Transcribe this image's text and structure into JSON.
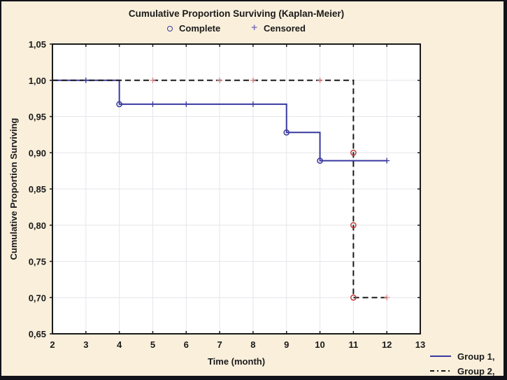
{
  "title": "Cumulative Proportion Surviving (Kaplan-Meier)",
  "top_legend": {
    "complete_label": "Complete",
    "censored_label": "Censored",
    "censored_symbol": "+"
  },
  "axes": {
    "x": {
      "label": "Time (month)"
    },
    "y": {
      "label": "Cumulative Proportion Surviving"
    }
  },
  "colors": {
    "background": "#f9efdb",
    "frame_border": "#12121a",
    "plot_bg": "#ffffff",
    "grid": "#e6e6ec",
    "axis": "#1a1a1a",
    "text": "#1a1a1a",
    "group1": "#3939a0",
    "group2": "#1a1a1a",
    "group2_marker": "#c93a3a",
    "group2_censor": "#dd8585",
    "legend_censored_plus": "#8878c0"
  },
  "chart_data": {
    "type": "line",
    "subtype": "kaplan-meier-step",
    "title": "Cumulative Proportion Surviving (Kaplan-Meier)",
    "xlabel": "Time (month)",
    "ylabel": "Cumulative Proportion Surviving",
    "xlim": [
      2,
      13
    ],
    "ylim": [
      0.65,
      1.05
    ],
    "x_ticks": [
      2,
      3,
      4,
      5,
      6,
      7,
      8,
      9,
      10,
      11,
      12,
      13
    ],
    "y_tick_values": [
      1.05,
      1.0,
      0.95,
      0.9,
      0.85,
      0.8,
      0.75,
      0.7,
      0.65
    ],
    "y_tick_labels": [
      "1,05",
      "1,00",
      "0,95",
      "0,90",
      "0,85",
      "0,80",
      "0,75",
      "0,70",
      "0,65"
    ],
    "grid": true,
    "legend_position": "bottom-right",
    "series": [
      {
        "name": "Group 1,",
        "line_style": "solid",
        "color": "#3939a0",
        "marker_color": "#3939a0",
        "censor_color": "#3939a0",
        "steps": [
          [
            2,
            1.0
          ],
          [
            4,
            1.0
          ],
          [
            4,
            0.967
          ],
          [
            9,
            0.967
          ],
          [
            9,
            0.928
          ],
          [
            10,
            0.928
          ],
          [
            10,
            0.889
          ],
          [
            12,
            0.889
          ]
        ],
        "complete_points": [
          [
            4,
            0.967
          ],
          [
            9,
            0.928
          ],
          [
            10,
            0.889
          ]
        ],
        "censored_points": [
          [
            3,
            1.0
          ],
          [
            5,
            0.967
          ],
          [
            6,
            0.967
          ],
          [
            8,
            0.967
          ],
          [
            12,
            0.889
          ]
        ]
      },
      {
        "name": "Group 2,",
        "line_style": "dashed",
        "color": "#1a1a1a",
        "marker_color": "#c93a3a",
        "censor_color": "#dd8585",
        "steps": [
          [
            2,
            1.0
          ],
          [
            11,
            1.0
          ],
          [
            11,
            0.7
          ],
          [
            12,
            0.7
          ]
        ],
        "complete_points": [
          [
            11,
            0.9
          ],
          [
            11,
            0.8
          ],
          [
            11,
            0.7
          ]
        ],
        "censored_points": [
          [
            5,
            1.0
          ],
          [
            7,
            1.0
          ],
          [
            8,
            1.0
          ],
          [
            10,
            1.0
          ],
          [
            12,
            0.7
          ]
        ]
      }
    ]
  }
}
